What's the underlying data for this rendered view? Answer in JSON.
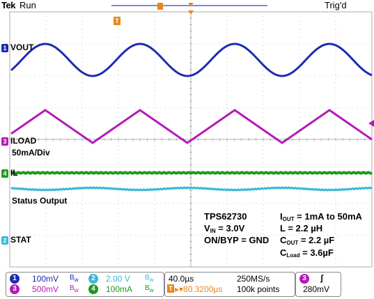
{
  "header": {
    "brand": "Tek",
    "state": "Run",
    "trigger_status": "Trig'd",
    "trigger_marker": "T"
  },
  "colors": {
    "ch1": "#1d2bb0",
    "ch2": "#38b8d8",
    "ch3": "#b41ab8",
    "ch4": "#1e9a1e",
    "trigger": "#e8861a",
    "grid": "#9a9a9a"
  },
  "channels": [
    {
      "id": "1",
      "label": "VOUT",
      "color": "#1d2bb0"
    },
    {
      "id": "3",
      "label": "ILOAD",
      "color": "#b41ab8"
    },
    {
      "id": "4",
      "label": "IL",
      "color": "#1e9a1e"
    },
    {
      "id": "2",
      "label": "STAT",
      "color": "#38b8d8"
    }
  ],
  "annotations": {
    "iload_scale": "50mA/Div",
    "status_output": "Status Output",
    "part": "TPS62730",
    "vin": "3.0V",
    "onbyp": "ON/BYP = GND",
    "iout": "= 1mA to 50mA",
    "inductor": "L = 2.2 µH",
    "cout": "= 2.2 µF",
    "cload": "= 3.6µF"
  },
  "readout": {
    "ch1_scale": "100mV",
    "ch3_scale": "500mV",
    "ch2_scale": "2.00 V",
    "ch4_scale": "100mA",
    "timebase": "40.0µs",
    "sample_rate": "250MS/s",
    "trigger_pos": "▸▾80.3200µs",
    "record_length": "100k points",
    "trigger_channel": "3",
    "trigger_slope": "ʃ",
    "trigger_level": "280mV"
  }
}
